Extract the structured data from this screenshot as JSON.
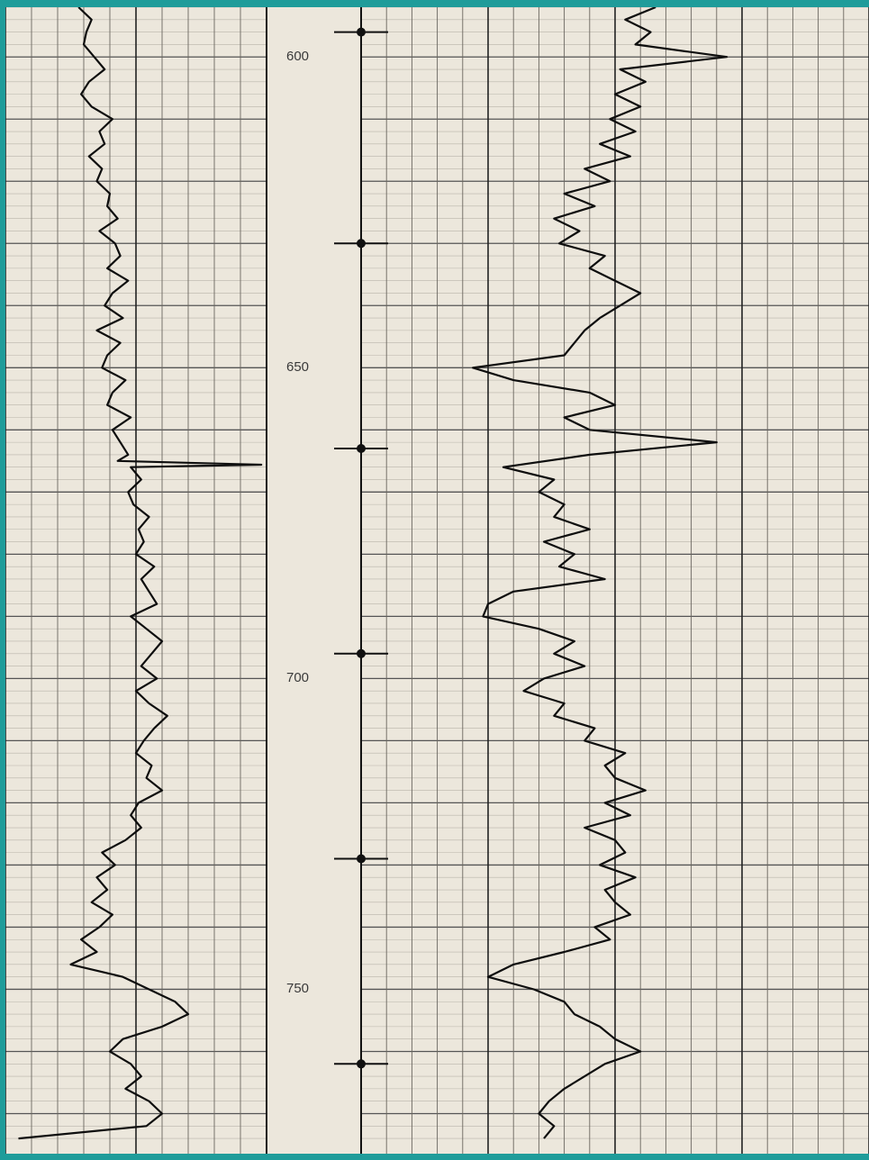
{
  "chart_data": {
    "type": "line",
    "title": "",
    "depth_axis": {
      "tick_labels": [
        "600",
        "650",
        "700",
        "750"
      ],
      "range": [
        592,
        775
      ],
      "marker_depths": [
        596,
        630,
        663,
        696,
        729,
        762
      ],
      "grid": true
    },
    "tracks": [
      {
        "track": "left",
        "series": [
          {
            "name": "",
            "depth": [
              592,
              594,
              596,
              598,
              600,
              602,
              604,
              606,
              608,
              610,
              612,
              614,
              616,
              618,
              620,
              622,
              624,
              626,
              628,
              630,
              632,
              634,
              636,
              638,
              640,
              642,
              644,
              646,
              648,
              650,
              652,
              654,
              656,
              658,
              660,
              662,
              664,
              665,
              665.6,
              666,
              668,
              670,
              672,
              674,
              676,
              678,
              680,
              682,
              684,
              686,
              688,
              690,
              692,
              694,
              696,
              698,
              700,
              702,
              704,
              706,
              708,
              710,
              712,
              714,
              716,
              718,
              720,
              722,
              724,
              726,
              728,
              730,
              732,
              734,
              736,
              738,
              740,
              742,
              744,
              746,
              748,
              750,
              752,
              754,
              756,
              758,
              760,
              762,
              764,
              766,
              768,
              770,
              772,
              774
            ],
            "value": [
              28,
              33,
              31,
              30,
              34,
              38,
              32,
              29,
              33,
              41,
              36,
              38,
              32,
              37,
              35,
              40,
              39,
              43,
              36,
              42,
              44,
              39,
              47,
              41,
              38,
              45,
              35,
              44,
              39,
              37,
              46,
              41,
              39,
              48,
              41,
              44,
              47,
              43,
              98,
              48,
              52,
              47,
              49,
              55,
              51,
              53,
              50,
              57,
              52,
              55,
              58,
              48,
              54,
              60,
              56,
              52,
              58,
              50,
              55,
              62,
              57,
              53,
              50,
              56,
              54,
              60,
              51,
              48,
              52,
              46,
              37,
              42,
              35,
              39,
              33,
              41,
              36,
              29,
              35,
              25,
              45,
              55,
              65,
              70,
              60,
              45,
              40,
              48,
              52,
              46,
              55,
              60,
              54,
              5
            ]
          }
        ]
      },
      {
        "track": "right",
        "series": [
          {
            "name": "",
            "depth": [
              592,
              594,
              596,
              598,
              600,
              602,
              604,
              606,
              608,
              610,
              612,
              614,
              616,
              618,
              620,
              622,
              624,
              626,
              628,
              630,
              632,
              634,
              636,
              638,
              640,
              642,
              644,
              646,
              648,
              650,
              652,
              654,
              656,
              658,
              660,
              662,
              664,
              666,
              668,
              670,
              672,
              674,
              676,
              678,
              680,
              682,
              684,
              686,
              688,
              690,
              692,
              694,
              696,
              698,
              700,
              702,
              704,
              706,
              708,
              710,
              712,
              714,
              716,
              718,
              720,
              722,
              724,
              726,
              728,
              730,
              732,
              734,
              736,
              738,
              740,
              742,
              744,
              746,
              748,
              750,
              752,
              754,
              756,
              758,
              760,
              762,
              764,
              766,
              768,
              770,
              772,
              774
            ],
            "value": [
              58,
              52,
              57,
              54,
              72,
              51,
              56,
              50,
              55,
              49,
              54,
              47,
              53,
              44,
              49,
              40,
              46,
              38,
              43,
              39,
              48,
              45,
              50,
              55,
              51,
              47,
              44,
              42,
              40,
              22,
              30,
              45,
              50,
              40,
              45,
              70,
              45,
              28,
              38,
              35,
              40,
              38,
              45,
              36,
              42,
              39,
              48,
              30,
              25,
              24,
              35,
              42,
              38,
              44,
              36,
              32,
              40,
              38,
              46,
              44,
              52,
              48,
              50,
              56,
              48,
              53,
              44,
              50,
              52,
              47,
              54,
              48,
              50,
              53,
              46,
              49,
              40,
              30,
              25,
              34,
              40,
              42,
              47,
              50,
              55,
              48,
              44,
              40,
              37,
              35,
              38,
              36
            ]
          }
        ]
      }
    ]
  }
}
